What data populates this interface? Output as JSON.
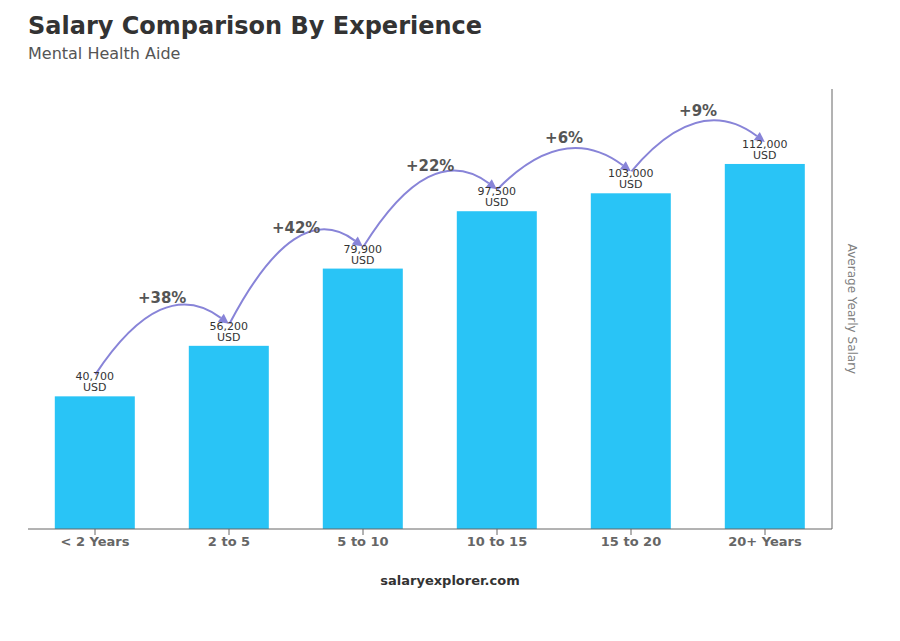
{
  "chart_data": {
    "type": "bar",
    "title": "Salary Comparison By Experience",
    "subtitle": "Mental Health Aide",
    "ylabel": "Average Yearly Salary",
    "categories": [
      "< 2 Years",
      "2 to 5",
      "5 to 10",
      "10 to 15",
      "15 to 20",
      "20+ Years"
    ],
    "values": [
      40700,
      56200,
      79900,
      97500,
      103000,
      112000
    ],
    "value_labels": [
      "40,700 USD",
      "56,200 USD",
      "79,900 USD",
      "97,500 USD",
      "103,000 USD",
      "112,000 USD"
    ],
    "data_labels": true,
    "annotations": [
      "+38%",
      "+42%",
      "+22%",
      "+6%",
      "+9%"
    ],
    "footer": "salaryexplorer.com",
    "color": "#29C4F6",
    "ylim": [
      0,
      135000
    ],
    "tick_labels": "x"
  }
}
